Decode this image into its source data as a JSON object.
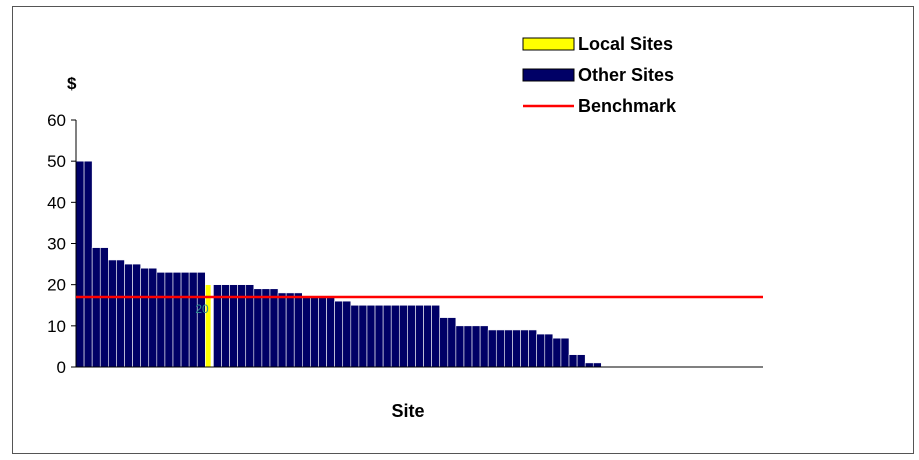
{
  "chart_data": {
    "type": "bar",
    "y_unit": "$",
    "xlabel": "Site",
    "ylabel": "",
    "ylim": [
      0,
      60
    ],
    "yticks": [
      "0",
      "10",
      "20",
      "30",
      "40",
      "50",
      "60"
    ],
    "grid": false,
    "legend_position": "top-right",
    "legend": [
      "Local Sites",
      "Other Sites",
      "Benchmark"
    ],
    "benchmark": 17,
    "local_site": {
      "index": 16,
      "value": 20,
      "label": "20"
    },
    "values": [
      50,
      50,
      29,
      29,
      26,
      26,
      25,
      25,
      24,
      24,
      23,
      23,
      23,
      23,
      23,
      23,
      20,
      20,
      20,
      20,
      20,
      20,
      19,
      19,
      19,
      18,
      18,
      18,
      17,
      17,
      17,
      17,
      16,
      16,
      15,
      15,
      15,
      15,
      15,
      15,
      15,
      15,
      15,
      15,
      15,
      12,
      12,
      10,
      10,
      10,
      10,
      9,
      9,
      9,
      9,
      9,
      9,
      8,
      8,
      7,
      7,
      3,
      3,
      1,
      1,
      0,
      0,
      0,
      0,
      0,
      0,
      0,
      0,
      0,
      0,
      0,
      0,
      0,
      0,
      0,
      0,
      0,
      0,
      0,
      0
    ],
    "colors": {
      "local": "#ffff00",
      "other": "#000066",
      "benchmark": "#ff0000",
      "bar_border": "#ffffff"
    }
  }
}
